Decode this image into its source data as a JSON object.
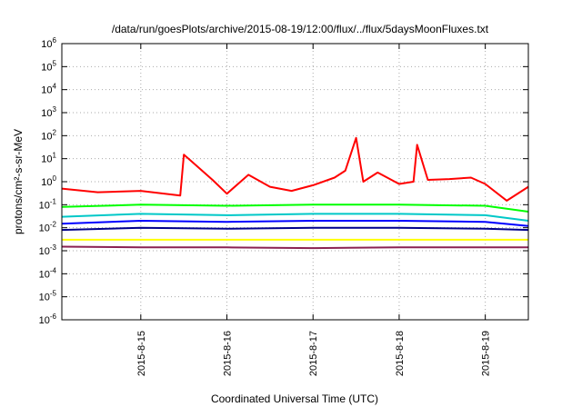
{
  "chart_data": {
    "type": "line",
    "title": "/data/run/goesPlots/archive/2015-08-19/12:00/flux/../flux/5daysMoonFluxes.txt",
    "xlabel": "Coordinated Universal Time (UTC)",
    "ylabel": "protons/cm²-s-sr-MeV",
    "yscale": "log",
    "ylim": [
      1e-06,
      1000000.0
    ],
    "xlim": [
      "2015-08-14 02:00",
      "2015-08-19 12:00"
    ],
    "grid": true,
    "legend": "none",
    "x_ticks": [
      "2015-8-15",
      "2015-8-16",
      "2015-8-17",
      "2015-8-18",
      "2015-8-19"
    ],
    "y_ticks": [
      "10-6",
      "10-5",
      "10-4",
      "10-3",
      "10-2",
      "10-1",
      "100",
      "101",
      "102",
      "103",
      "104",
      "105",
      "106"
    ],
    "series": [
      {
        "color": "#ff0000",
        "x": [
          "2015-08-14 02:00",
          "2015-08-14 12:00",
          "2015-08-15 00:00",
          "2015-08-15 11:00",
          "2015-08-15 12:00",
          "2015-08-15 14:00",
          "2015-08-15 20:00",
          "2015-08-16 00:00",
          "2015-08-16 06:00",
          "2015-08-16 12:00",
          "2015-08-16 18:00",
          "2015-08-17 00:00",
          "2015-08-17 06:00",
          "2015-08-17 09:00",
          "2015-08-17 12:00",
          "2015-08-17 14:00",
          "2015-08-17 18:00",
          "2015-08-18 00:00",
          "2015-08-18 04:00",
          "2015-08-18 05:00",
          "2015-08-18 08:00",
          "2015-08-18 14:00",
          "2015-08-18 20:00",
          "2015-08-19 00:00",
          "2015-08-19 06:00",
          "2015-08-19 12:00"
        ],
        "values": [
          0.5,
          0.35,
          0.4,
          0.25,
          15,
          8,
          1.2,
          0.3,
          2,
          0.6,
          0.4,
          0.7,
          1.5,
          3,
          80,
          1,
          2.5,
          0.8,
          1.0,
          40,
          1.2,
          1.3,
          1.5,
          0.8,
          0.15,
          0.6
        ]
      },
      {
        "color": "#00ff00",
        "x": [
          "2015-08-14 02:00",
          "2015-08-15 00:00",
          "2015-08-16 00:00",
          "2015-08-17 00:00",
          "2015-08-18 00:00",
          "2015-08-19 00:00",
          "2015-08-19 12:00"
        ],
        "values": [
          0.08,
          0.1,
          0.09,
          0.1,
          0.1,
          0.09,
          0.05
        ]
      },
      {
        "color": "#00c8c8",
        "x": [
          "2015-08-14 02:00",
          "2015-08-15 00:00",
          "2015-08-16 00:00",
          "2015-08-17 00:00",
          "2015-08-18 00:00",
          "2015-08-19 00:00",
          "2015-08-19 12:00"
        ],
        "values": [
          0.03,
          0.04,
          0.035,
          0.04,
          0.04,
          0.035,
          0.02
        ]
      },
      {
        "color": "#0000ff",
        "x": [
          "2015-08-14 02:00",
          "2015-08-15 00:00",
          "2015-08-16 00:00",
          "2015-08-17 00:00",
          "2015-08-18 00:00",
          "2015-08-19 00:00",
          "2015-08-19 12:00"
        ],
        "values": [
          0.015,
          0.02,
          0.018,
          0.02,
          0.02,
          0.018,
          0.012
        ]
      },
      {
        "color": "#00008b",
        "x": [
          "2015-08-14 02:00",
          "2015-08-15 00:00",
          "2015-08-16 00:00",
          "2015-08-17 00:00",
          "2015-08-18 00:00",
          "2015-08-19 00:00",
          "2015-08-19 12:00"
        ],
        "values": [
          0.008,
          0.01,
          0.009,
          0.01,
          0.01,
          0.009,
          0.008
        ]
      },
      {
        "color": "#ffff00",
        "x": [
          "2015-08-14 02:00",
          "2015-08-15 00:00",
          "2015-08-16 00:00",
          "2015-08-17 00:00",
          "2015-08-18 00:00",
          "2015-08-19 00:00",
          "2015-08-19 12:00"
        ],
        "values": [
          0.003,
          0.003,
          0.003,
          0.003,
          0.003,
          0.003,
          0.003
        ]
      },
      {
        "color": "#8b2252",
        "x": [
          "2015-08-14 02:00",
          "2015-08-15 00:00",
          "2015-08-16 00:00",
          "2015-08-17 00:00",
          "2015-08-18 00:00",
          "2015-08-19 00:00",
          "2015-08-19 12:00"
        ],
        "values": [
          0.0015,
          0.0014,
          0.0014,
          0.0013,
          0.0014,
          0.0014,
          0.0014
        ]
      }
    ]
  }
}
